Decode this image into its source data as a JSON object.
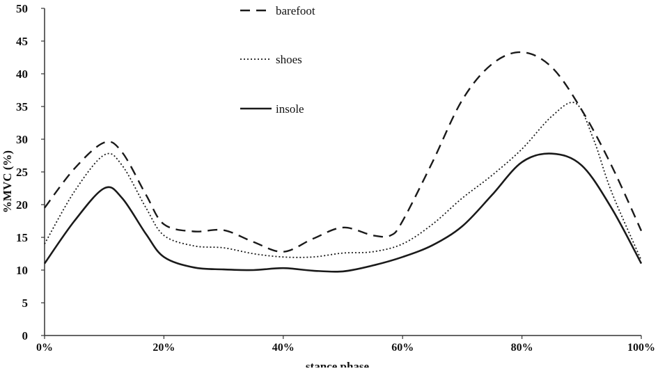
{
  "chart_data": {
    "type": "line",
    "title": "",
    "ylabel": "%MVC (%)",
    "xlabel": "stance phase",
    "ylim": [
      0,
      50
    ],
    "xlim": [
      0,
      100
    ],
    "y_ticks": [
      "0",
      "5",
      "10",
      "15",
      "20",
      "25",
      "30",
      "35",
      "40",
      "45",
      "50"
    ],
    "x_ticks": [
      "0%",
      "20%",
      "40%",
      "60%",
      "80%",
      "100%"
    ],
    "grid": false,
    "legend_position": "top-center",
    "series": [
      {
        "name": "barefoot",
        "style": "dashed",
        "color": "#1a1a1a",
        "x": [
          0,
          5,
          10,
          13,
          17,
          20,
          25,
          30,
          35,
          40,
          45,
          50,
          55,
          58,
          60,
          65,
          70,
          75,
          80,
          85,
          90,
          95,
          100
        ],
        "y": [
          19.5,
          25.5,
          29.5,
          28,
          21.5,
          17,
          15.9,
          16.1,
          14.3,
          12.8,
          14.8,
          16.5,
          15.3,
          15.3,
          17.5,
          26.5,
          36,
          41.5,
          43.3,
          41,
          34.5,
          26,
          16
        ]
      },
      {
        "name": "shoes",
        "style": "dotted",
        "color": "#1a1a1a",
        "x": [
          0,
          5,
          10,
          13,
          17,
          20,
          25,
          30,
          35,
          40,
          45,
          50,
          55,
          60,
          65,
          70,
          75,
          80,
          85,
          89,
          92,
          95,
          100
        ],
        "y": [
          14,
          22,
          27.6,
          26,
          19.5,
          15.3,
          13.7,
          13.4,
          12.5,
          12,
          12,
          12.6,
          12.8,
          14,
          17,
          21,
          24.5,
          28.5,
          33.5,
          35.5,
          30,
          22,
          11.5
        ]
      },
      {
        "name": "insole",
        "style": "solid",
        "color": "#1a1a1a",
        "x": [
          0,
          5,
          10,
          13,
          17,
          20,
          25,
          30,
          35,
          40,
          45,
          50,
          55,
          60,
          65,
          70,
          75,
          80,
          85,
          90,
          95,
          100
        ],
        "y": [
          11,
          17.5,
          22.5,
          21,
          15.5,
          12,
          10.4,
          10.1,
          10,
          10.3,
          9.9,
          9.8,
          10.7,
          12,
          13.8,
          16.7,
          21.5,
          26.5,
          27.8,
          26,
          19.5,
          11
        ]
      }
    ]
  }
}
